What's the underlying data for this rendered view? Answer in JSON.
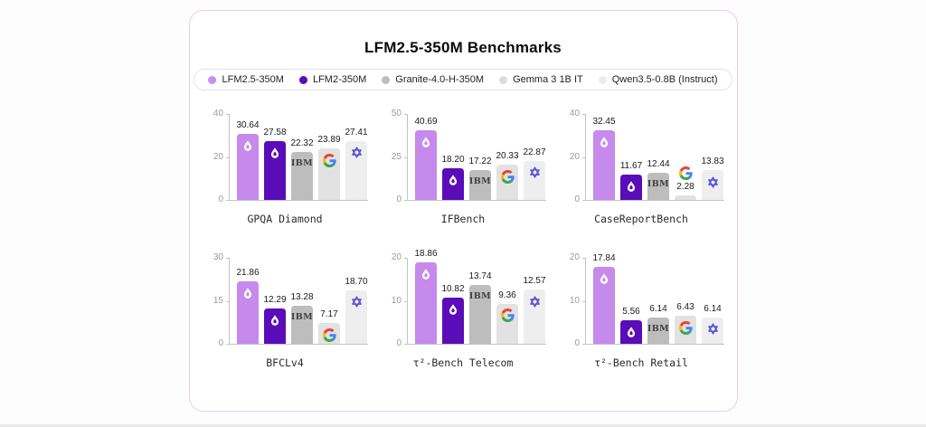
{
  "page": {
    "title": "LFM2.5-350M Benchmarks"
  },
  "legend": {
    "items": [
      {
        "label": "LFM2.5-350M",
        "color": "#c98fec",
        "icon": "legend-dot"
      },
      {
        "label": "LFM2-350M",
        "color": "#5a0cb8",
        "icon": "legend-dot"
      },
      {
        "label": "Granite-4.0-H-350M",
        "color": "#bcbcbc",
        "icon": "legend-dot"
      },
      {
        "label": "Gemma 3 1B IT",
        "color": "#dcdcdc",
        "icon": "legend-dot"
      },
      {
        "label": "Qwen3.5-0.8B (Instruct)",
        "color": "#ececec",
        "icon": "legend-dot"
      }
    ]
  },
  "chart_data": {
    "type": "bar",
    "legend_position": "top",
    "grid": false,
    "series": [
      "LFM2.5-350M",
      "LFM2-350M",
      "Granite-4.0-H-350M",
      "Gemma 3 1B IT",
      "Qwen3.5-0.8B (Instruct)"
    ],
    "series_colors": [
      "#c58aec",
      "#5a0cb8",
      "#bdbdbd",
      "#e2e2e2",
      "#eeeeee"
    ],
    "series_icons": [
      "liquid-droplet-icon",
      "liquid-droplet-icon",
      "ibm-logo-icon",
      "google-g-icon",
      "qwen-logo-icon"
    ],
    "charts": [
      {
        "title": "GPQA Diamond",
        "ylim": [
          0,
          40
        ],
        "yticks": [
          0,
          20,
          40
        ],
        "values": [
          30.64,
          27.58,
          22.32,
          23.89,
          27.41
        ],
        "labels": [
          "30.64",
          "27.58",
          "22.32",
          "23.89",
          "27.41"
        ]
      },
      {
        "title": "IFBench",
        "ylim": [
          0,
          50
        ],
        "yticks": [
          0,
          25,
          50
        ],
        "values": [
          40.69,
          18.2,
          17.22,
          20.33,
          22.87
        ],
        "labels": [
          "40.69",
          "18.20",
          "17.22",
          "20.33",
          "22.87"
        ]
      },
      {
        "title": "CaseReportBench",
        "ylim": [
          0,
          40
        ],
        "yticks": [
          0,
          20,
          40
        ],
        "values": [
          32.45,
          11.67,
          12.44,
          2.28,
          13.83
        ],
        "labels": [
          "32.45",
          "11.67",
          "12.44",
          "2.28",
          "13.83"
        ]
      },
      {
        "title": "BFCLv4",
        "ylim": [
          0,
          30
        ],
        "yticks": [
          0,
          15,
          30
        ],
        "values": [
          21.86,
          12.29,
          13.28,
          7.17,
          18.7
        ],
        "labels": [
          "21.86",
          "12.29",
          "13.28",
          "7.17",
          "18.70"
        ]
      },
      {
        "title": "τ²-Bench Telecom",
        "ylim": [
          0,
          20
        ],
        "yticks": [
          0,
          10,
          20
        ],
        "values": [
          18.86,
          10.82,
          13.74,
          9.36,
          12.57
        ],
        "labels": [
          "18.86",
          "10.82",
          "13.74",
          "9.36",
          "12.57"
        ]
      },
      {
        "title": "τ²-Bench Retail",
        "ylim": [
          0,
          20
        ],
        "yticks": [
          0,
          10,
          20
        ],
        "values": [
          17.84,
          5.56,
          6.14,
          6.43,
          6.14
        ],
        "labels": [
          "17.84",
          "5.56",
          "6.14",
          "6.43",
          "6.14"
        ]
      }
    ]
  }
}
